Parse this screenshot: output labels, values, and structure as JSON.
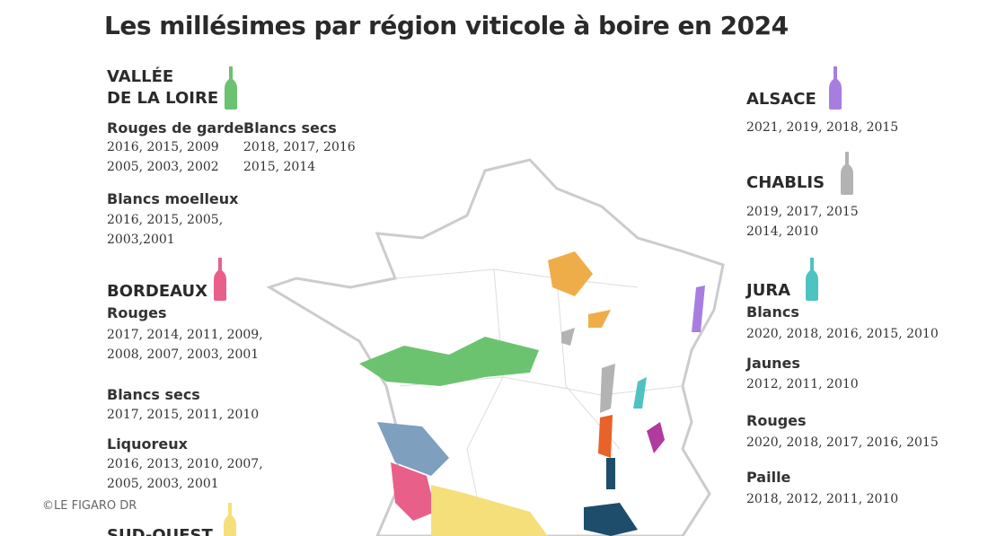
{
  "title": "Les millésimes par région viticole à boire en 2024",
  "credit": "©LE FIGARO DR",
  "regions": [
    {
      "name": [
        "VALLÉE",
        "DE LA LOIRE"
      ],
      "color": "#6cc36f",
      "sections": [
        {
          "label": "Rouges de garde",
          "lines": [
            "2016, 2015, 2009",
            "2005, 2003, 2002"
          ]
        },
        {
          "label": "Blancs secs",
          "lines": [
            "2018, 2017, 2016",
            "2015, 2014"
          ]
        },
        {
          "label": "Blancs moelleux",
          "lines": [
            "2016, 2015, 2005,",
            "2003,2001"
          ]
        }
      ]
    },
    {
      "name": [
        "BORDEAUX"
      ],
      "color": "#e8608a",
      "sections": [
        {
          "label": "Rouges",
          "lines": [
            "2017, 2014, 2011, 2009,",
            "2008, 2007, 2003, 2001"
          ]
        },
        {
          "label": "Blancs secs",
          "lines": [
            "2017, 2015, 2011, 2010"
          ]
        },
        {
          "label": "Liquoreux",
          "lines": [
            "2016, 2013, 2010, 2007,",
            "2005, 2003, 2001"
          ]
        }
      ]
    },
    {
      "name": [
        "SUD-OUEST"
      ],
      "color": "#f5df7a",
      "sections": []
    },
    {
      "name": [
        "ALSACE"
      ],
      "color": "#a77ee0",
      "sections": [
        {
          "lines": [
            "2021, 2019, 2018, 2015"
          ]
        }
      ]
    },
    {
      "name": [
        "CHABLIS"
      ],
      "color": "#b3b3b3",
      "sections": [
        {
          "lines": [
            "2019, 2017, 2015",
            "2014, 2010"
          ]
        }
      ]
    },
    {
      "name": [
        "JURA"
      ],
      "color": "#4fc3c1",
      "sections": [
        {
          "label": "Blancs",
          "lines": [
            "2020, 2018, 2016, 2015, 2010"
          ]
        },
        {
          "label": "Jaunes",
          "lines": [
            "2012, 2011, 2010"
          ]
        },
        {
          "label": "Rouges",
          "lines": [
            "2020, 2018, 2017, 2016, 2015"
          ]
        },
        {
          "label": "Paille",
          "lines": [
            "2018, 2012, 2011, 2010"
          ]
        }
      ]
    }
  ]
}
